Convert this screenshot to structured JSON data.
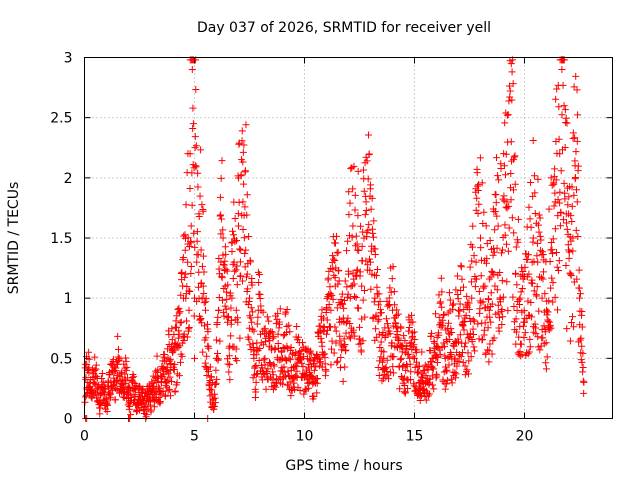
{
  "chart_data": {
    "type": "scatter",
    "title": "Day 037 of 2026, SRMTID for receiver yell",
    "xlabel": "GPS time / hours",
    "ylabel": "SRMTID / TECUs",
    "xlim": [
      0,
      24
    ],
    "ylim": [
      0,
      3
    ],
    "xticks": [
      0,
      5,
      10,
      15,
      20
    ],
    "yticks": [
      0,
      0.5,
      1,
      1.5,
      2,
      2.5,
      3
    ],
    "xtick_labels": [
      "0",
      "5",
      "10",
      "15",
      "20"
    ],
    "ytick_labels": [
      "0",
      "0.5",
      "1",
      "1.5",
      "2",
      "2.5",
      "3"
    ],
    "grid": true,
    "marker": "+",
    "color": "#ff0000",
    "x_range_of_data": [
      0,
      22.7
    ],
    "density_note": "",
    "series": [
      {
        "name": "SRMTID",
        "points": [
          [
            0.05,
            0.18
          ],
          [
            0.1,
            0.45
          ],
          [
            0.15,
            0.3
          ],
          [
            0.2,
            0.38
          ],
          [
            0.3,
            0.22
          ],
          [
            0.4,
            0.3
          ],
          [
            0.5,
            0.35
          ],
          [
            0.6,
            0.25
          ],
          [
            0.7,
            0.15
          ],
          [
            0.8,
            0.28
          ],
          [
            0.9,
            0.2
          ],
          [
            1.0,
            0.12
          ],
          [
            1.1,
            0.22
          ],
          [
            1.2,
            0.3
          ],
          [
            1.3,
            0.4
          ],
          [
            1.4,
            0.25
          ],
          [
            1.5,
            0.45
          ],
          [
            1.6,
            0.35
          ],
          [
            1.7,
            0.28
          ],
          [
            1.8,
            0.32
          ],
          [
            1.9,
            0.4
          ],
          [
            2.0,
            0.2
          ],
          [
            2.1,
            0.15
          ],
          [
            2.2,
            0.25
          ],
          [
            2.3,
            0.2
          ],
          [
            2.4,
            0.12
          ],
          [
            2.5,
            0.18
          ],
          [
            2.6,
            0.22
          ],
          [
            2.7,
            0.15
          ],
          [
            2.8,
            0.1
          ],
          [
            2.9,
            0.2
          ],
          [
            3.0,
            0.15
          ],
          [
            3.1,
            0.25
          ],
          [
            3.2,
            0.2
          ],
          [
            3.3,
            0.35
          ],
          [
            3.4,
            0.25
          ],
          [
            3.5,
            0.3
          ],
          [
            3.6,
            0.42
          ],
          [
            3.7,
            0.3
          ],
          [
            3.8,
            0.5
          ],
          [
            3.9,
            0.4
          ],
          [
            4.0,
            0.55
          ],
          [
            4.1,
            0.45
          ],
          [
            4.2,
            0.6
          ],
          [
            4.3,
            0.7
          ],
          [
            4.4,
            0.8
          ],
          [
            4.5,
            1.0
          ],
          [
            4.6,
            1.2
          ],
          [
            4.7,
            1.45
          ],
          [
            4.75,
            0.9
          ],
          [
            4.8,
            2.2
          ],
          [
            4.85,
            1.6
          ],
          [
            4.9,
            2.9
          ],
          [
            4.95,
            2.45
          ],
          [
            5.0,
            1.0
          ],
          [
            5.05,
            2.1
          ],
          [
            5.1,
            1.3
          ],
          [
            5.2,
            1.7
          ],
          [
            5.3,
            1.4
          ],
          [
            5.4,
            1.1
          ],
          [
            5.5,
            0.9
          ],
          [
            5.6,
            0.6
          ],
          [
            5.7,
            0.3
          ],
          [
            5.8,
            0.2
          ],
          [
            5.9,
            0.1
          ],
          [
            6.0,
            0.5
          ],
          [
            6.1,
            0.9
          ],
          [
            6.2,
            1.3
          ],
          [
            6.3,
            1.5
          ],
          [
            6.4,
            1.1
          ],
          [
            6.5,
            0.8
          ],
          [
            6.6,
            0.6
          ],
          [
            6.7,
            1.0
          ],
          [
            6.8,
            1.3
          ],
          [
            6.9,
            0.9
          ],
          [
            7.0,
            1.6
          ],
          [
            7.1,
            1.4
          ],
          [
            7.2,
            1.8
          ],
          [
            7.3,
            2.05
          ],
          [
            7.4,
            1.2
          ],
          [
            7.5,
            1.0
          ],
          [
            7.6,
            0.8
          ],
          [
            7.7,
            0.5
          ],
          [
            7.8,
            0.3
          ],
          [
            7.9,
            0.9
          ],
          [
            8.0,
            0.7
          ],
          [
            8.2,
            0.5
          ],
          [
            8.4,
            0.6
          ],
          [
            8.6,
            0.45
          ],
          [
            8.8,
            0.7
          ],
          [
            9.0,
            0.5
          ],
          [
            9.2,
            0.6
          ],
          [
            9.4,
            0.4
          ],
          [
            9.6,
            0.55
          ],
          [
            9.8,
            0.5
          ],
          [
            10.0,
            0.35
          ],
          [
            10.2,
            0.45
          ],
          [
            10.4,
            0.3
          ],
          [
            10.6,
            0.5
          ],
          [
            10.8,
            0.6
          ],
          [
            11.0,
            0.7
          ],
          [
            11.2,
            0.9
          ],
          [
            11.4,
            1.1
          ],
          [
            11.6,
            0.8
          ],
          [
            11.8,
            0.6
          ],
          [
            12.0,
            1.2
          ],
          [
            12.2,
            1.6
          ],
          [
            12.4,
            1.4
          ],
          [
            12.6,
            1.1
          ],
          [
            12.8,
            1.8
          ],
          [
            13.0,
            1.3
          ],
          [
            13.2,
            1.0
          ],
          [
            13.4,
            0.7
          ],
          [
            13.6,
            0.5
          ],
          [
            13.8,
            0.7
          ],
          [
            14.0,
            0.9
          ],
          [
            14.2,
            0.6
          ],
          [
            14.4,
            0.5
          ],
          [
            14.6,
            0.4
          ],
          [
            14.8,
            0.6
          ],
          [
            15.0,
            0.5
          ],
          [
            15.2,
            0.3
          ],
          [
            15.4,
            0.4
          ],
          [
            15.6,
            0.3
          ],
          [
            15.8,
            0.5
          ],
          [
            16.0,
            0.6
          ],
          [
            16.2,
            0.8
          ],
          [
            16.4,
            0.5
          ],
          [
            16.6,
            0.7
          ],
          [
            16.8,
            0.6
          ],
          [
            17.0,
            0.9
          ],
          [
            17.2,
            0.8
          ],
          [
            17.4,
            0.7
          ],
          [
            17.6,
            1.0
          ],
          [
            17.8,
            1.3
          ],
          [
            18.0,
            1.5
          ],
          [
            18.2,
            1.1
          ],
          [
            18.4,
            0.9
          ],
          [
            18.6,
            1.2
          ],
          [
            18.8,
            1.6
          ],
          [
            19.0,
            1.4
          ],
          [
            19.2,
            1.8
          ],
          [
            19.4,
            2.3
          ],
          [
            19.5,
            1.9
          ],
          [
            19.6,
            1.2
          ],
          [
            19.8,
            1.0
          ],
          [
            20.0,
            0.8
          ],
          [
            20.2,
            1.2
          ],
          [
            20.4,
            1.5
          ],
          [
            20.6,
            1.3
          ],
          [
            20.8,
            1.0
          ],
          [
            21.0,
            0.9
          ],
          [
            21.2,
            1.4
          ],
          [
            21.4,
            1.8
          ],
          [
            21.6,
            2.2
          ],
          [
            21.7,
            2.9
          ],
          [
            21.8,
            2.6
          ],
          [
            21.9,
            1.7
          ],
          [
            22.0,
            1.4
          ],
          [
            22.1,
            1.2
          ],
          [
            22.2,
            1.5
          ],
          [
            22.3,
            2.1
          ],
          [
            22.4,
            1.8
          ],
          [
            22.5,
            1.0
          ],
          [
            22.6,
            0.6
          ],
          [
            22.7,
            0.3
          ]
        ]
      }
    ]
  }
}
